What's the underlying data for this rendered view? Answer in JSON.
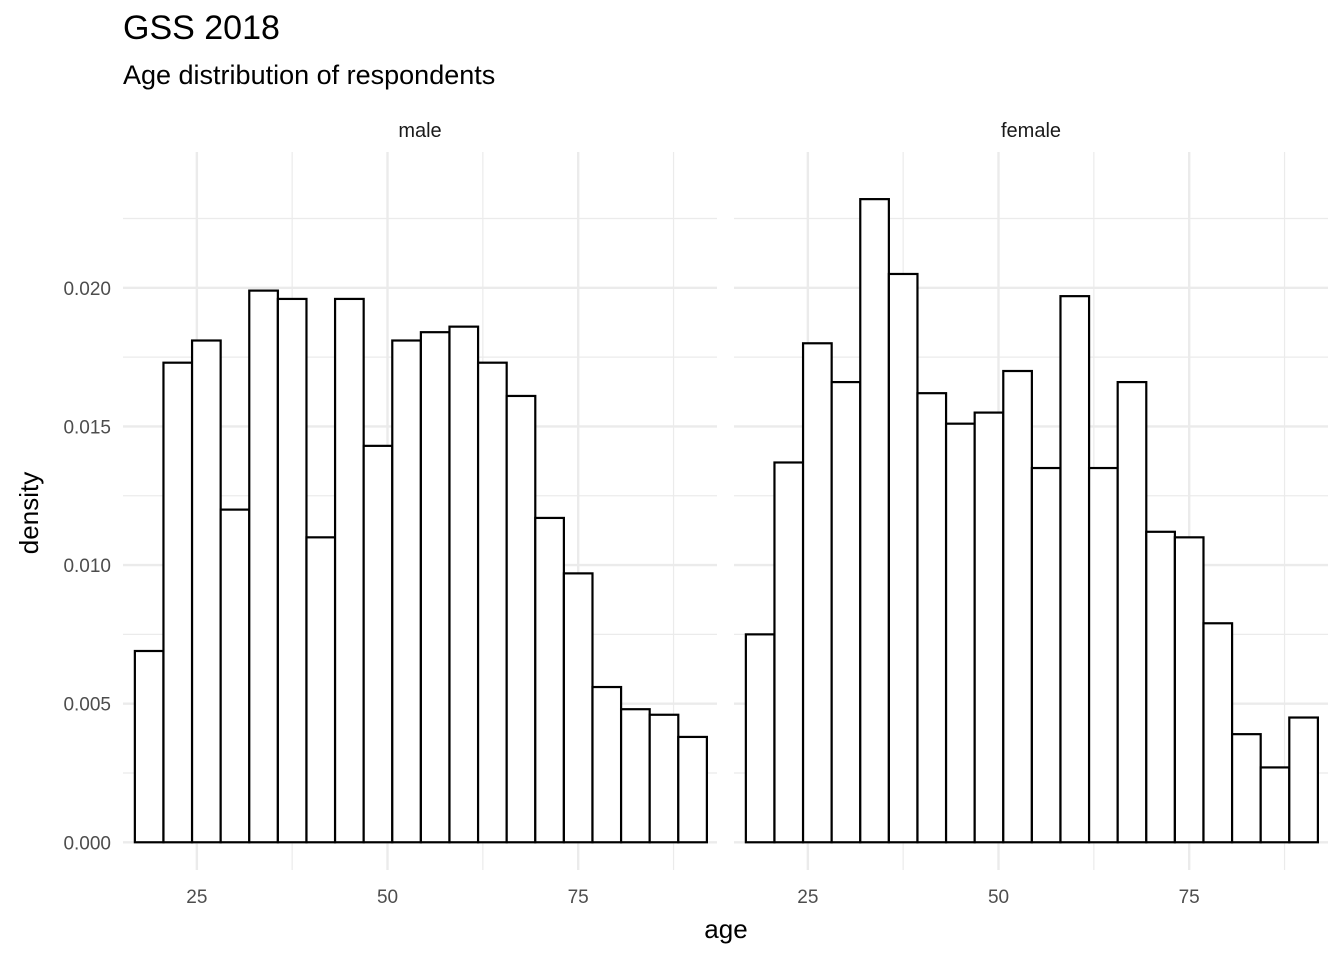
{
  "chart_data": {
    "type": "bar",
    "title": "GSS 2018",
    "subtitle": "Age distribution of respondents",
    "xlabel": "age",
    "ylabel": "density",
    "xlim": [
      15.32,
      93.2
    ],
    "ylim": [
      -0.001,
      0.0249
    ],
    "x_ticks": [
      25,
      50,
      75
    ],
    "x_minor_ticks": [
      37.5,
      62.5,
      87.5
    ],
    "y_ticks": [
      0.0,
      0.005,
      0.01,
      0.015,
      0.02
    ],
    "y_tick_labels": [
      "0.000",
      "0.005",
      "0.010",
      "0.015",
      "0.020"
    ],
    "y_minor_ticks": [
      0.0025,
      0.0075,
      0.0125,
      0.0175,
      0.0225
    ],
    "bin_width": 3.75,
    "bin_starts": [
      16.875,
      20.625,
      24.375,
      28.125,
      31.875,
      35.625,
      39.375,
      43.125,
      46.875,
      50.625,
      54.375,
      58.125,
      61.875,
      65.625,
      69.375,
      73.125,
      76.875,
      80.625,
      84.375,
      88.125
    ],
    "grid": true,
    "legend": "none",
    "bar_fill": "#ffffff",
    "bar_outline": "#000000",
    "grid_color": "#ebebeb",
    "panels": [
      {
        "label": "male",
        "values": [
          0.0069,
          0.0173,
          0.0181,
          0.012,
          0.0199,
          0.0196,
          0.011,
          0.0196,
          0.0143,
          0.0181,
          0.0184,
          0.0186,
          0.0173,
          0.0161,
          0.0117,
          0.0097,
          0.0056,
          0.0048,
          0.0046,
          0.0038
        ]
      },
      {
        "label": "female",
        "values": [
          0.0075,
          0.0137,
          0.018,
          0.0166,
          0.0232,
          0.0205,
          0.0162,
          0.0151,
          0.0155,
          0.017,
          0.0135,
          0.0197,
          0.0135,
          0.0166,
          0.0112,
          0.011,
          0.0079,
          0.0039,
          0.0027,
          0.0045
        ]
      }
    ]
  }
}
